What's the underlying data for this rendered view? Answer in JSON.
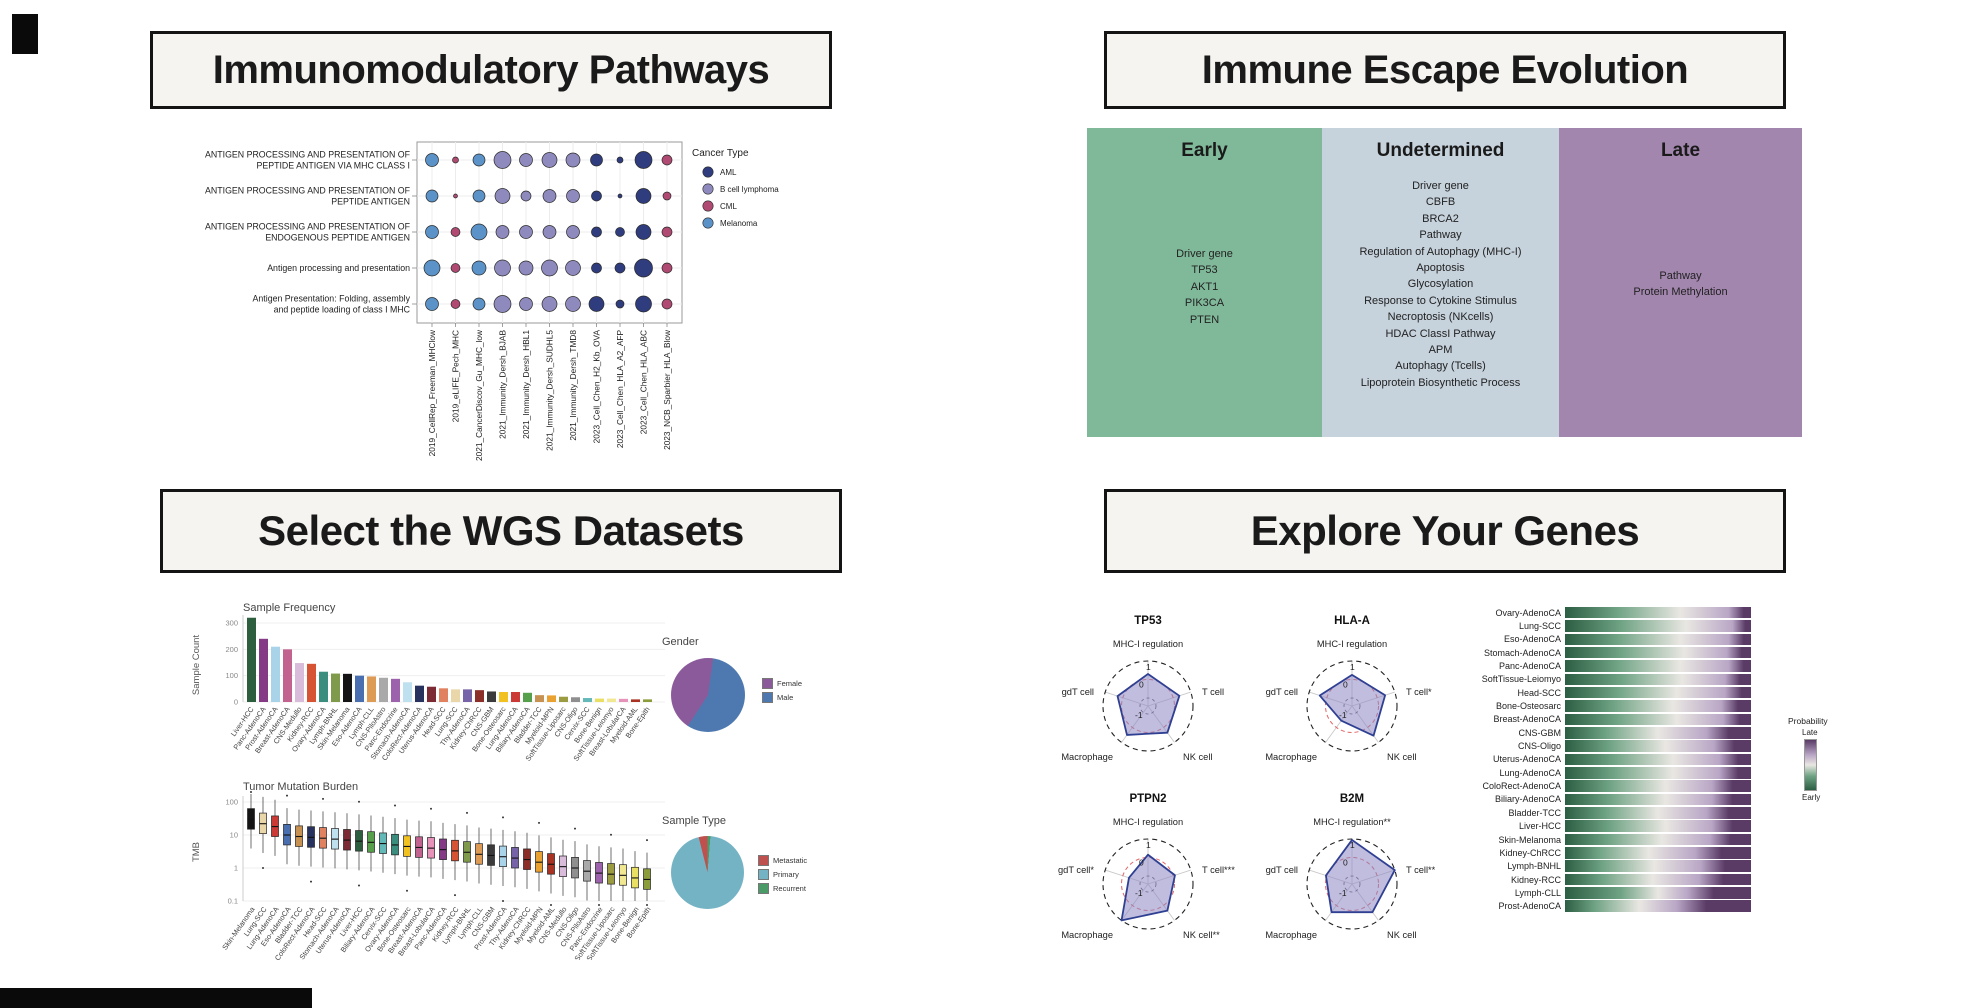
{
  "panels": {
    "pathways": {
      "title": "Immunomodulatory Pathways",
      "dotplot": {
        "row_labels": [
          [
            "ANTIGEN PROCESSING AND PRESENTATION OF",
            "PEPTIDE ANTIGEN VIA MHC CLASS I"
          ],
          [
            "ANTIGEN PROCESSING AND PRESENTATION OF",
            "PEPTIDE ANTIGEN"
          ],
          [
            "ANTIGEN PROCESSING AND PRESENTATION OF",
            "ENDOGENOUS PEPTIDE ANTIGEN"
          ],
          [
            "Antigen processing and presentation"
          ],
          [
            "Antigen Presentation: Folding, assembly",
            "and peptide loading of class I MHC"
          ]
        ],
        "columns": [
          {
            "label": "2019_CellRep_Freeman_MHClow",
            "cancer": "Melanoma"
          },
          {
            "label": "2019_eLIFE_Pech_MHC",
            "cancer": "CML"
          },
          {
            "label": "2021_CancerDiscov_Gu_MHC_low",
            "cancer": "Melanoma"
          },
          {
            "label": "2021_Immunity_Dersh_BJAB",
            "cancer": "B cell lymphoma"
          },
          {
            "label": "2021_Immunity_Dersh_HBL1",
            "cancer": "B cell lymphoma"
          },
          {
            "label": "2021_Immunity_Dersh_SUDHL5",
            "cancer": "B cell lymphoma"
          },
          {
            "label": "2021_Immunity_Dersh_TMD8",
            "cancer": "B cell lymphoma"
          },
          {
            "label": "2023_Cell_Chen_H2_Kb_OVA",
            "cancer": "AML"
          },
          {
            "label": "2023_Cell_Chen_HLA_A2_AFP",
            "cancer": "AML"
          },
          {
            "label": "2023_Cell_Chen_HLA_ABC",
            "cancer": "AML"
          },
          {
            "label": "2023_NCB_Sparbier_HLA_Blow",
            "cancer": "CML"
          }
        ],
        "sizes": [
          [
            13,
            6,
            12,
            17,
            13,
            15,
            14,
            12,
            6,
            17,
            10
          ],
          [
            12,
            4,
            12,
            15,
            10,
            13,
            13,
            10,
            4,
            15,
            8
          ],
          [
            13,
            9,
            16,
            13,
            13,
            13,
            13,
            10,
            9,
            15,
            10
          ],
          [
            16,
            9,
            14,
            16,
            14,
            16,
            15,
            10,
            10,
            18,
            10
          ],
          [
            13,
            9,
            12,
            17,
            13,
            15,
            15,
            15,
            8,
            16,
            10
          ]
        ],
        "legend": {
          "title": "Cancer Type",
          "items": [
            {
              "label": "AML",
              "color": "#2f3c7d"
            },
            {
              "label": "B cell lymphoma",
              "color": "#8f8abe"
            },
            {
              "label": "CML",
              "color": "#b04a72"
            },
            {
              "label": "Melanoma",
              "color": "#5b92c8"
            }
          ]
        }
      }
    },
    "escape": {
      "title": "Immune Escape Evolution",
      "columns": [
        {
          "header": "Early",
          "color": "#80b99a",
          "list_top": 118,
          "lines": [
            "Driver gene",
            "TP53",
            "AKT1",
            "PIK3CA",
            "PTEN"
          ]
        },
        {
          "header": "Undetermined",
          "color": "#c6d2dc",
          "list_top": 50,
          "lines": [
            "Driver gene",
            "CBFB",
            "BRCA2",
            "Pathway",
            "Regulation of Autophagy (MHC-I)",
            "Apoptosis",
            "Glycosylation",
            "Response to Cytokine Stimulus",
            "Necroptosis (NKcells)",
            "HDAC ClassI Pathway",
            "APM",
            "Autophagy (Tcells)",
            "Lipoprotein Biosynthetic Process"
          ],
          "note": ""
        },
        {
          "header": "Late",
          "color": "#a286ae",
          "list_top": 140,
          "lines": [
            "Pathway",
            "Protein Methylation"
          ]
        }
      ]
    },
    "wgs": {
      "title": "Select the WGS Datasets",
      "freq": {
        "title": "Sample Frequency",
        "ylabel": "Sample Count",
        "yticks": [
          300,
          200,
          100,
          0
        ],
        "bars": [
          {
            "label": "Liver-HCC",
            "value": 320,
            "color": "#2d5f3e"
          },
          {
            "label": "Panc-AdenoCA",
            "value": 240,
            "color": "#843a85"
          },
          {
            "label": "Prost-AdenoCA",
            "value": 210,
            "color": "#a9d3e8"
          },
          {
            "label": "Breast-AdenoCA",
            "value": 200,
            "color": "#c2628f"
          },
          {
            "label": "CNS-Medullo",
            "value": 148,
            "color": "#d9bcd9"
          },
          {
            "label": "Kidney-RCC",
            "value": 145,
            "color": "#d65434"
          },
          {
            "label": "Ovary-AdenoCA",
            "value": 115,
            "color": "#3b8d7e"
          },
          {
            "label": "Lymph-BNHL",
            "value": 108,
            "color": "#7f9a4a"
          },
          {
            "label": "Skin-Melanoma",
            "value": 107,
            "color": "#141414"
          },
          {
            "label": "Eso-AdenoCA",
            "value": 100,
            "color": "#4a6fb0"
          },
          {
            "label": "Lymph-CLL",
            "value": 97,
            "color": "#dd9b55"
          },
          {
            "label": "CNS-PiloAstro",
            "value": 92,
            "color": "#a9a9a9"
          },
          {
            "label": "Panc-Endocrine",
            "value": 88,
            "color": "#9c62ab"
          },
          {
            "label": "Stomach-AdenoCA",
            "value": 75,
            "color": "#bfe0ee"
          },
          {
            "label": "ColoRect-AdenoCA",
            "value": 62,
            "color": "#28325f"
          },
          {
            "label": "Uterus-AdenoCA",
            "value": 58,
            "color": "#7c2a34"
          },
          {
            "label": "Head-SCC",
            "value": 52,
            "color": "#e0825f"
          },
          {
            "label": "Lung-SCC",
            "value": 48,
            "color": "#e9d6a9"
          },
          {
            "label": "Thy-AdenoCA",
            "value": 48,
            "color": "#7764a8"
          },
          {
            "label": "Kidney-ChRCC",
            "value": 45,
            "color": "#8c2f29"
          },
          {
            "label": "CNS-GBM",
            "value": 40,
            "color": "#3b3b3b"
          },
          {
            "label": "Bone-Osteosarc",
            "value": 38,
            "color": "#f0c11f"
          },
          {
            "label": "Lung-AdenoCA",
            "value": 38,
            "color": "#cc3a36"
          },
          {
            "label": "Biliary-AdenoCA",
            "value": 35,
            "color": "#57a04b"
          },
          {
            "label": "Bladder-TCC",
            "value": 26,
            "color": "#c79151"
          },
          {
            "label": "Myeloid-MPN",
            "value": 25,
            "color": "#e9a232"
          },
          {
            "label": "SoftTissue-Liposarc",
            "value": 20,
            "color": "#9b9b41"
          },
          {
            "label": "CNS-Oligo",
            "value": 18,
            "color": "#8f8f8f"
          },
          {
            "label": "Cervix-SCC",
            "value": 15,
            "color": "#63b8b8"
          },
          {
            "label": "Bone-Benign",
            "value": 13,
            "color": "#e9e063"
          },
          {
            "label": "SoftTissue-Leiomyo",
            "value": 13,
            "color": "#f1e891"
          },
          {
            "label": "Breast-LobularCA",
            "value": 12,
            "color": "#e792b9"
          },
          {
            "label": "Myeloid-AML",
            "value": 10,
            "color": "#a93322"
          },
          {
            "label": "Bone-Epith",
            "value": 10,
            "color": "#8b9c3b"
          }
        ]
      },
      "gender": {
        "title": "Gender",
        "slices": [
          {
            "label": "Female",
            "value": 43,
            "color": "#8b5a9b"
          },
          {
            "label": "Male",
            "value": 57,
            "color": "#4e79b0"
          }
        ]
      },
      "tmb": {
        "title": "Tumor Mutation Burden",
        "ylabel": "TMB",
        "yticks": [
          "100",
          "10",
          "1",
          "0.1"
        ],
        "boxes": [
          {
            "label": "Skin-Melanoma",
            "med": 30
          },
          {
            "label": "Lung-SCC",
            "med": 22
          },
          {
            "label": "Lung-AdenoCA",
            "med": 18
          },
          {
            "label": "Eso-AdenoCA",
            "med": 10
          },
          {
            "label": "Bladder-TCC",
            "med": 9
          },
          {
            "label": "ColoRect-AdenoCA",
            "med": 8.5
          },
          {
            "label": "Head-SCC",
            "med": 8
          },
          {
            "label": "Stomach-AdenoCA",
            "med": 7.5
          },
          {
            "label": "Uterus-AdenoCA",
            "med": 7
          },
          {
            "label": "Liver-HCC",
            "med": 6.5
          },
          {
            "label": "Biliary-AdenoCA",
            "med": 6
          },
          {
            "label": "Cervix-SCC",
            "med": 5.5
          },
          {
            "label": "Ovary-AdenoCA",
            "med": 5
          },
          {
            "label": "Bone-Osteosarc",
            "med": 4.5
          },
          {
            "label": "Breast-AdenoCA",
            "med": 4.2
          },
          {
            "label": "Breast-LobularCA",
            "med": 4
          },
          {
            "label": "Panc-AdenoCA",
            "med": 3.6
          },
          {
            "label": "Kidney-RCC",
            "med": 3.3
          },
          {
            "label": "Lymph-BNHL",
            "med": 3
          },
          {
            "label": "Lymph-CLL",
            "med": 2.6
          },
          {
            "label": "CNS-GBM",
            "med": 2.4
          },
          {
            "label": "Prost-AdenoCA",
            "med": 2.2
          },
          {
            "label": "Thy-AdenoCA",
            "med": 2
          },
          {
            "label": "Kidney-ChRCC",
            "med": 1.8
          },
          {
            "label": "Myeloid-MPN",
            "med": 1.5
          },
          {
            "label": "Myeloid-AML",
            "med": 1.3
          },
          {
            "label": "CNS-Medullo",
            "med": 1.1
          },
          {
            "label": "CNS-Oligo",
            "med": 1
          },
          {
            "label": "CNS-PiloAstro",
            "med": 0.8
          },
          {
            "label": "Panc-Endocrine",
            "med": 0.7
          },
          {
            "label": "SoftTissue-Liposarc",
            "med": 0.65
          },
          {
            "label": "SoftTissue-Leiomyo",
            "med": 0.6
          },
          {
            "label": "Bone-Benign",
            "med": 0.5
          },
          {
            "label": "Bone-Epith",
            "med": 0.45
          }
        ]
      },
      "stype": {
        "title": "Sample Type",
        "slices": [
          {
            "label": "Metastatic",
            "value": 3.9,
            "color": "#c0504d"
          },
          {
            "label": "Primary",
            "value": 94.8,
            "color": "#74b3c4"
          },
          {
            "label": "Recurrent",
            "value": 1.3,
            "color": "#4b9b68"
          }
        ]
      }
    },
    "genes": {
      "title": "Explore Your Genes",
      "radar_ticks": [
        "1",
        "0",
        "-1"
      ],
      "radars": [
        {
          "name": "TP53",
          "axes": [
            "MHC-I regulation",
            "T cell",
            "NK cell",
            "Macrophage",
            "gdT cell"
          ],
          "values": [
            0.3,
            0.35,
            0.35,
            0.5,
            0.3
          ]
        },
        {
          "name": "HLA-A",
          "axes": [
            "MHC-I regulation",
            "T cell*",
            "NK cell",
            "Macrophage",
            "gdT cell"
          ],
          "values": [
            0.25,
            0.45,
            0.55,
            -0.45,
            0.4
          ]
        },
        {
          "name": "PTPN2",
          "axes": [
            "MHC-I regulation",
            "T cell***",
            "NK cell**",
            "Macrophage",
            "gdT cell*"
          ],
          "values": [
            0.15,
            0.1,
            0.35,
            1.0,
            -0.35
          ]
        },
        {
          "name": "B2M",
          "axes": [
            "MHC-I regulation**",
            "T cell**",
            "NK cell",
            "Macrophage",
            "gdT cell"
          ],
          "values": [
            0.95,
            1.0,
            0.45,
            0.45,
            0.05
          ]
        }
      ],
      "stacked": {
        "legend": {
          "title": "Probability",
          "top": "Late",
          "bottom": "Early"
        },
        "rows": [
          {
            "label": "Ovary-AdenoCA",
            "stops": [
              28,
              62,
              88,
              96
            ]
          },
          {
            "label": "Lung-SCC",
            "stops": [
              30,
              65,
              90,
              97
            ]
          },
          {
            "label": "Eso-AdenoCA",
            "stops": [
              28,
              62,
              88,
              96
            ]
          },
          {
            "label": "Stomach-AdenoCA",
            "stops": [
              30,
              64,
              87,
              95
            ]
          },
          {
            "label": "Panc-AdenoCA",
            "stops": [
              28,
              62,
              88,
              96
            ]
          },
          {
            "label": "SoftTissue-Leiomyo",
            "stops": [
              30,
              63,
              86,
              94
            ]
          },
          {
            "label": "Head-SCC",
            "stops": [
              28,
              60,
              86,
              95
            ]
          },
          {
            "label": "Bone-Osteosarc",
            "stops": [
              26,
              58,
              84,
              93
            ]
          },
          {
            "label": "Breast-AdenoCA",
            "stops": [
              28,
              60,
              85,
              94
            ]
          },
          {
            "label": "CNS-GBM",
            "stops": [
              22,
              50,
              76,
              88
            ]
          },
          {
            "label": "CNS-Oligo",
            "stops": [
              24,
              54,
              80,
              91
            ]
          },
          {
            "label": "Uterus-AdenoCA",
            "stops": [
              26,
              58,
              83,
              93
            ]
          },
          {
            "label": "Lung-AdenoCA",
            "stops": [
              26,
              58,
              83,
              93
            ]
          },
          {
            "label": "ColoRect-AdenoCA",
            "stops": [
              24,
              54,
              79,
              90
            ]
          },
          {
            "label": "Biliary-AdenoCA",
            "stops": [
              24,
              54,
              79,
              90
            ]
          },
          {
            "label": "Bladder-TCC",
            "stops": [
              22,
              50,
              76,
              88
            ]
          },
          {
            "label": "Liver-HCC",
            "stops": [
              24,
              54,
              79,
              90
            ]
          },
          {
            "label": "Skin-Melanoma",
            "stops": [
              23,
              52,
              78,
              89
            ]
          },
          {
            "label": "Kidney-ChRCC",
            "stops": [
              18,
              45,
              70,
              84
            ]
          },
          {
            "label": "Lymph-BNHL",
            "stops": [
              20,
              48,
              73,
              86
            ]
          },
          {
            "label": "Kidney-RCC",
            "stops": [
              20,
              47,
              72,
              85
            ]
          },
          {
            "label": "Lymph-CLL",
            "stops": [
              30,
              50,
              66,
              80
            ]
          },
          {
            "label": "Prost-AdenoCA",
            "stops": [
              16,
              40,
              60,
              76
            ]
          }
        ],
        "colors": {
          "early_dark": "#2c5e43",
          "early_mid": "#6fa384",
          "neutral": "#e9e7e2",
          "late_mid": "#b9a6c6",
          "late_dark": "#5a3b66"
        }
      }
    }
  }
}
